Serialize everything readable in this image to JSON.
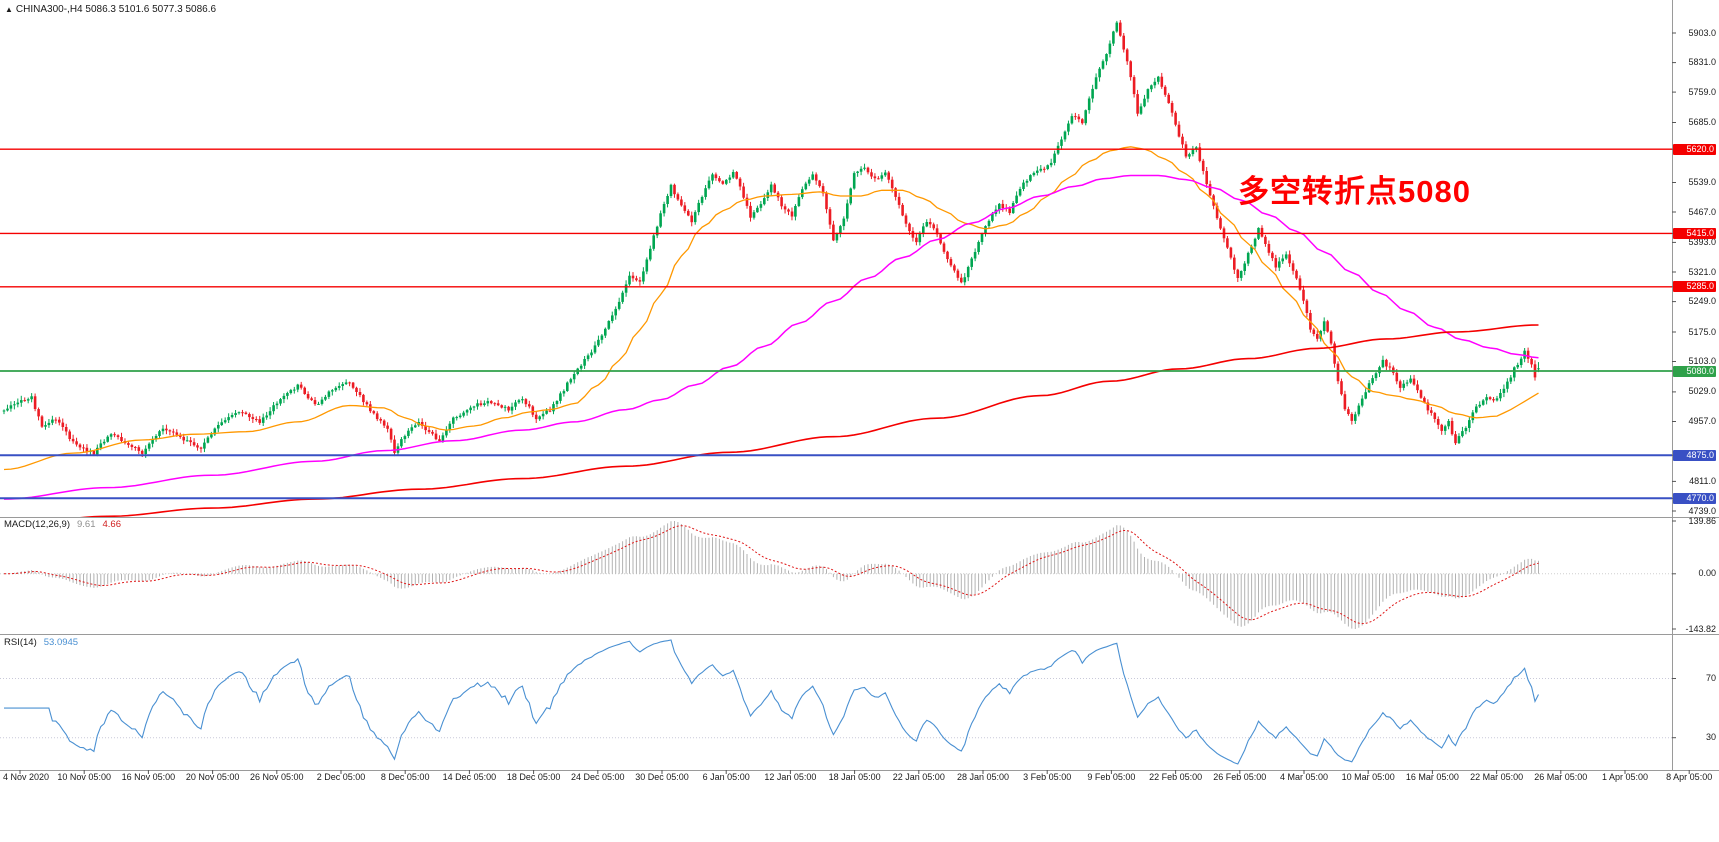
{
  "header": {
    "arrow": "▲",
    "line": "CHINA300-,H4  5086.3 5101.6 5077.3 5086.6"
  },
  "annotation": {
    "text": "多空转折点5080",
    "color": "#FF0000"
  },
  "indicators": {
    "macd": {
      "label": "MACD(12,26,9)",
      "value_main": "9.61",
      "value_signal": "4.66",
      "scale_labels": [
        "139.86",
        "0.00",
        "-143.82"
      ]
    },
    "rsi": {
      "label": "RSI(14)",
      "value": "53.0945"
    }
  },
  "price_axis": {
    "labels": [
      {
        "text": "5903.0",
        "value": 5903.0
      },
      {
        "text": "5831.0",
        "value": 5831.0
      },
      {
        "text": "5759.0",
        "value": 5759.0
      },
      {
        "text": "5685.0",
        "value": 5685.0
      },
      {
        "text": "5539.0",
        "value": 5539.0
      },
      {
        "text": "5467.0",
        "value": 5467.0
      },
      {
        "text": "5393.0",
        "value": 5393.0
      },
      {
        "text": "5321.0",
        "value": 5321.0
      },
      {
        "text": "5249.0",
        "value": 5249.0
      },
      {
        "text": "5175.0",
        "value": 5175.0
      },
      {
        "text": "5103.0",
        "value": 5103.0
      },
      {
        "text": "5029.0",
        "value": 5029.0
      },
      {
        "text": "4957.0",
        "value": 4957.0
      },
      {
        "text": "4811.0",
        "value": 4811.0
      },
      {
        "text": "4739.0",
        "value": 4739.0
      }
    ]
  },
  "time_axis": {
    "labels": [
      "4 Nov 2020",
      "10 Nov 05:00",
      "16 Nov 05:00",
      "20 Nov 05:00",
      "26 Nov 05:00",
      "2 Dec 05:00",
      "8 Dec 05:00",
      "14 Dec 05:00",
      "18 Dec 05:00",
      "24 Dec 05:00",
      "30 Dec 05:00",
      "6 Jan 05:00",
      "12 Jan 05:00",
      "18 Jan 05:00",
      "22 Jan 05:00",
      "28 Jan 05:00",
      "3 Feb 05:00",
      "9 Feb 05:00",
      "22 Feb 05:00",
      "26 Feb 05:00",
      "4 Mar 05:00",
      "10 Mar 05:00",
      "16 Mar 05:00",
      "22 Mar 05:00",
      "26 Mar 05:00",
      "1 Apr 05:00",
      "8 Apr 05:00"
    ]
  },
  "colors": {
    "background": "#FFFFFF",
    "candle_up": "#00A651",
    "candle_down": "#EC1C24",
    "macd_histogram": "#B2B2B2",
    "macd_signal": "#DF1616",
    "rsi_line": "#4A90D2",
    "axis_text": "#1A1A1A",
    "separator": "#9A9A9A"
  },
  "chart_data": {
    "type": "candlestick",
    "symbol": "CHINA300-",
    "timeframe": "H4",
    "ohlc_current": {
      "open": 5086.3,
      "high": 5101.6,
      "low": 5077.3,
      "close": 5086.6
    },
    "bars": 445,
    "price_path_anchors": [
      [
        0,
        4985
      ],
      [
        4,
        5005
      ],
      [
        8,
        5015
      ],
      [
        11,
        4940
      ],
      [
        15,
        4965
      ],
      [
        20,
        4905
      ],
      [
        26,
        4880
      ],
      [
        31,
        4930
      ],
      [
        36,
        4900
      ],
      [
        40,
        4882
      ],
      [
        46,
        4940
      ],
      [
        52,
        4915
      ],
      [
        57,
        4890
      ],
      [
        62,
        4950
      ],
      [
        68,
        4980
      ],
      [
        74,
        4955
      ],
      [
        80,
        5015
      ],
      [
        85,
        5045
      ],
      [
        90,
        4995
      ],
      [
        95,
        5035
      ],
      [
        100,
        5055
      ],
      [
        104,
        5005
      ],
      [
        108,
        4965
      ],
      [
        111,
        4935
      ],
      [
        113,
        4882
      ],
      [
        116,
        4925
      ],
      [
        120,
        4955
      ],
      [
        126,
        4908
      ],
      [
        130,
        4965
      ],
      [
        136,
        4995
      ],
      [
        141,
        5005
      ],
      [
        146,
        4985
      ],
      [
        150,
        5015
      ],
      [
        154,
        4965
      ],
      [
        158,
        4985
      ],
      [
        162,
        5035
      ],
      [
        166,
        5085
      ],
      [
        170,
        5125
      ],
      [
        174,
        5185
      ],
      [
        178,
        5245
      ],
      [
        181,
        5310
      ],
      [
        184,
        5300
      ],
      [
        187,
        5380
      ],
      [
        190,
        5460
      ],
      [
        193,
        5530
      ],
      [
        196,
        5480
      ],
      [
        199,
        5445
      ],
      [
        202,
        5505
      ],
      [
        205,
        5560
      ],
      [
        208,
        5535
      ],
      [
        211,
        5565
      ],
      [
        214,
        5505
      ],
      [
        216,
        5455
      ],
      [
        219,
        5485
      ],
      [
        222,
        5535
      ],
      [
        225,
        5485
      ],
      [
        228,
        5455
      ],
      [
        231,
        5525
      ],
      [
        234,
        5555
      ],
      [
        237,
        5515
      ],
      [
        240,
        5395
      ],
      [
        243,
        5455
      ],
      [
        246,
        5560
      ],
      [
        249,
        5575
      ],
      [
        252,
        5545
      ],
      [
        255,
        5565
      ],
      [
        258,
        5505
      ],
      [
        261,
        5435
      ],
      [
        264,
        5395
      ],
      [
        267,
        5445
      ],
      [
        270,
        5415
      ],
      [
        272,
        5370
      ],
      [
        274,
        5340
      ],
      [
        277,
        5295
      ],
      [
        279,
        5330
      ],
      [
        282,
        5395
      ],
      [
        285,
        5445
      ],
      [
        288,
        5485
      ],
      [
        291,
        5465
      ],
      [
        294,
        5525
      ],
      [
        297,
        5555
      ],
      [
        300,
        5570
      ],
      [
        303,
        5585
      ],
      [
        306,
        5645
      ],
      [
        309,
        5705
      ],
      [
        312,
        5685
      ],
      [
        314,
        5745
      ],
      [
        317,
        5815
      ],
      [
        320,
        5875
      ],
      [
        322,
        5930
      ],
      [
        324,
        5865
      ],
      [
        326,
        5795
      ],
      [
        328,
        5705
      ],
      [
        331,
        5765
      ],
      [
        334,
        5795
      ],
      [
        337,
        5735
      ],
      [
        340,
        5655
      ],
      [
        342,
        5605
      ],
      [
        345,
        5625
      ],
      [
        347,
        5565
      ],
      [
        350,
        5485
      ],
      [
        352,
        5425
      ],
      [
        355,
        5355
      ],
      [
        357,
        5305
      ],
      [
        360,
        5365
      ],
      [
        363,
        5425
      ],
      [
        365,
        5385
      ],
      [
        368,
        5335
      ],
      [
        371,
        5365
      ],
      [
        374,
        5305
      ],
      [
        376,
        5255
      ],
      [
        378,
        5185
      ],
      [
        380,
        5155
      ],
      [
        382,
        5205
      ],
      [
        384,
        5145
      ],
      [
        386,
        5055
      ],
      [
        388,
        4985
      ],
      [
        390,
        4960
      ],
      [
        393,
        5015
      ],
      [
        396,
        5065
      ],
      [
        399,
        5105
      ],
      [
        402,
        5075
      ],
      [
        404,
        5035
      ],
      [
        407,
        5065
      ],
      [
        410,
        5015
      ],
      [
        413,
        4975
      ],
      [
        416,
        4935
      ],
      [
        418,
        4955
      ],
      [
        420,
        4905
      ],
      [
        423,
        4945
      ],
      [
        426,
        4995
      ],
      [
        429,
        5015
      ],
      [
        431,
        5005
      ],
      [
        434,
        5035
      ],
      [
        437,
        5085
      ],
      [
        440,
        5125
      ],
      [
        442,
        5095
      ],
      [
        443,
        5062
      ],
      [
        444,
        5086
      ]
    ],
    "moving_averages": [
      {
        "name": "ma-fast",
        "color": "#FF9800",
        "width": 1.3,
        "anchors": [
          [
            0,
            4840
          ],
          [
            20,
            4880
          ],
          [
            40,
            4912
          ],
          [
            55,
            4926
          ],
          [
            70,
            4932
          ],
          [
            85,
            4956
          ],
          [
            100,
            4996
          ],
          [
            110,
            4990
          ],
          [
            116,
            4966
          ],
          [
            122,
            4946
          ],
          [
            128,
            4936
          ],
          [
            136,
            4946
          ],
          [
            145,
            4966
          ],
          [
            152,
            4980
          ],
          [
            158,
            4986
          ],
          [
            165,
            5000
          ],
          [
            172,
            5046
          ],
          [
            178,
            5106
          ],
          [
            184,
            5180
          ],
          [
            190,
            5266
          ],
          [
            196,
            5360
          ],
          [
            202,
            5430
          ],
          [
            208,
            5470
          ],
          [
            214,
            5496
          ],
          [
            220,
            5506
          ],
          [
            228,
            5510
          ],
          [
            236,
            5516
          ],
          [
            242,
            5506
          ],
          [
            248,
            5506
          ],
          [
            254,
            5520
          ],
          [
            260,
            5520
          ],
          [
            266,
            5500
          ],
          [
            272,
            5470
          ],
          [
            278,
            5440
          ],
          [
            284,
            5426
          ],
          [
            290,
            5436
          ],
          [
            296,
            5466
          ],
          [
            302,
            5506
          ],
          [
            308,
            5550
          ],
          [
            314,
            5590
          ],
          [
            320,
            5616
          ],
          [
            326,
            5626
          ],
          [
            330,
            5620
          ],
          [
            336,
            5596
          ],
          [
            342,
            5560
          ],
          [
            348,
            5510
          ],
          [
            354,
            5450
          ],
          [
            360,
            5390
          ],
          [
            366,
            5330
          ],
          [
            372,
            5266
          ],
          [
            378,
            5200
          ],
          [
            384,
            5130
          ],
          [
            390,
            5066
          ],
          [
            396,
            5030
          ],
          [
            402,
            5020
          ],
          [
            408,
            5010
          ],
          [
            414,
            4996
          ],
          [
            420,
            4976
          ],
          [
            426,
            4966
          ],
          [
            432,
            4970
          ],
          [
            436,
            4986
          ],
          [
            440,
            5006
          ],
          [
            444,
            5026
          ]
        ]
      },
      {
        "name": "ma-medium",
        "color": "#FF00FF",
        "width": 1.5,
        "anchors": [
          [
            0,
            4768
          ],
          [
            30,
            4796
          ],
          [
            60,
            4826
          ],
          [
            90,
            4860
          ],
          [
            110,
            4886
          ],
          [
            130,
            4910
          ],
          [
            150,
            4936
          ],
          [
            165,
            4956
          ],
          [
            180,
            4986
          ],
          [
            190,
            5010
          ],
          [
            200,
            5046
          ],
          [
            210,
            5090
          ],
          [
            220,
            5140
          ],
          [
            230,
            5196
          ],
          [
            240,
            5250
          ],
          [
            250,
            5306
          ],
          [
            260,
            5356
          ],
          [
            270,
            5400
          ],
          [
            280,
            5440
          ],
          [
            290,
            5476
          ],
          [
            300,
            5506
          ],
          [
            310,
            5530
          ],
          [
            318,
            5548
          ],
          [
            326,
            5556
          ],
          [
            334,
            5556
          ],
          [
            342,
            5546
          ],
          [
            350,
            5526
          ],
          [
            358,
            5496
          ],
          [
            366,
            5460
          ],
          [
            374,
            5420
          ],
          [
            382,
            5370
          ],
          [
            390,
            5320
          ],
          [
            398,
            5270
          ],
          [
            406,
            5226
          ],
          [
            414,
            5186
          ],
          [
            422,
            5156
          ],
          [
            430,
            5136
          ],
          [
            438,
            5120
          ],
          [
            444,
            5112
          ]
        ]
      },
      {
        "name": "ma-slow",
        "color": "#F40000",
        "width": 1.6,
        "anchors": [
          [
            0,
            4705
          ],
          [
            30,
            4726
          ],
          [
            60,
            4746
          ],
          [
            90,
            4768
          ],
          [
            120,
            4792
          ],
          [
            150,
            4818
          ],
          [
            180,
            4848
          ],
          [
            210,
            4882
          ],
          [
            240,
            4920
          ],
          [
            270,
            4965
          ],
          [
            300,
            5020
          ],
          [
            320,
            5055
          ],
          [
            340,
            5085
          ],
          [
            360,
            5110
          ],
          [
            380,
            5135
          ],
          [
            400,
            5158
          ],
          [
            420,
            5175
          ],
          [
            444,
            5192
          ]
        ]
      }
    ],
    "horizontal_lines": [
      {
        "price": 5620.0,
        "label": "5620.0",
        "color": "#F40000",
        "width": 1.4
      },
      {
        "price": 5415.0,
        "label": "5415.0",
        "color": "#F40000",
        "width": 1.4
      },
      {
        "price": 5285.0,
        "label": "5285.0",
        "color": "#F40000",
        "width": 1.4
      },
      {
        "price": 5080.0,
        "label": "5080.0",
        "color": "#2FA14A",
        "width": 1.8
      },
      {
        "price": 4875.0,
        "label": "4875.0",
        "color": "#3950C4",
        "width": 2
      },
      {
        "price": 4770.0,
        "label": "4770.0",
        "color": "#3950C4",
        "width": 2
      }
    ],
    "macd": {
      "fast": 12,
      "slow": 26,
      "signal": 9,
      "current_main": 9.61,
      "current_signal": 4.66,
      "panel_max": 139.86,
      "panel_min": -143.82
    },
    "rsi": {
      "period": 14,
      "current": 53.0945,
      "levels": [
        70,
        30
      ]
    },
    "noise": {
      "seed": 20210408,
      "close": 9,
      "wick": 9
    }
  }
}
